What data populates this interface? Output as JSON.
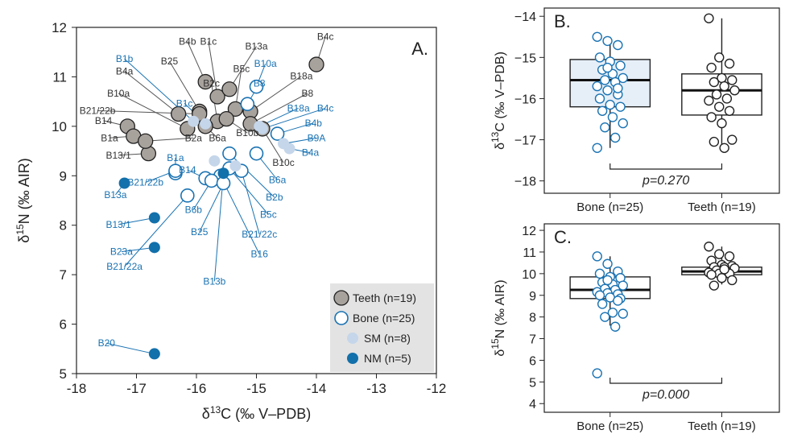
{
  "colors": {
    "teeth_fill": "#a8a29d",
    "bone_stroke": "#1a73b3",
    "sm_fill": "#c5d6ea",
    "nm_fill": "#1270aa",
    "box_b_fill": "#e6eef7",
    "leader_teeth": "#555555",
    "leader_bone": "#1a73b3",
    "legend_bg": "#e3e3e3"
  },
  "chart_data": [
    {
      "type": "scatter",
      "panel_label": "A.",
      "xlabel_main": "δ",
      "xlabel_sup": "13",
      "xlabel_rest": "C (‰ V–PDB)",
      "ylabel_main": "δ",
      "ylabel_sup": "15",
      "ylabel_rest": "N (‰ AIR)",
      "xlim": [
        -18,
        -12
      ],
      "ylim": [
        5,
        12
      ],
      "xticks": [
        -18,
        -17,
        -16,
        -15,
        -14,
        -13,
        -12
      ],
      "yticks": [
        5,
        6,
        7,
        8,
        9,
        10,
        11,
        12
      ],
      "xtick_labels": [
        "-18",
        "-17",
        "-16",
        "-15",
        "-14",
        "-13",
        "-12"
      ],
      "ytick_labels": [
        "5",
        "6",
        "7",
        "8",
        "9",
        "10",
        "11",
        "12"
      ],
      "legend": {
        "placement": "bottom-right",
        "items": [
          {
            "kind": "teeth",
            "label": "Teeth (n=19)"
          },
          {
            "kind": "bone",
            "label": "Bone  (n=25)"
          },
          {
            "kind": "sm",
            "label": "SM  (n=8)"
          },
          {
            "kind": "nm",
            "label": "NM (n=5)"
          }
        ]
      },
      "series": [
        {
          "name": "Teeth (n=19)",
          "kind": "teeth",
          "points": [
            {
              "label": "B4c",
              "x": -14.0,
              "y": 11.25,
              "lx": -13.85,
              "ly": 11.75
            },
            {
              "label": "B4b",
              "x": -15.85,
              "y": 10.9,
              "lx": -16.15,
              "ly": 11.65
            },
            {
              "label": "B1c",
              "x": -15.65,
              "y": 10.6,
              "lx": -15.8,
              "ly": 11.65
            },
            {
              "label": "B13a",
              "x": -15.45,
              "y": 10.75,
              "lx": -15.0,
              "ly": 11.55
            },
            {
              "label": "B5c",
              "x": -15.35,
              "y": 10.35,
              "lx": -15.25,
              "ly": 11.1
            },
            {
              "label": "B25",
              "x": -15.95,
              "y": 10.3,
              "lx": -16.45,
              "ly": 11.25
            },
            {
              "label": "B2c",
              "x": -15.65,
              "y": 10.1,
              "lx": -15.75,
              "ly": 10.8
            },
            {
              "label": "B4a",
              "x": -16.3,
              "y": 10.25,
              "lx": -17.2,
              "ly": 11.05
            },
            {
              "label": "B10a",
              "x": -16.15,
              "y": 9.95,
              "lx": -17.3,
              "ly": 10.6
            },
            {
              "label": "B21/22b",
              "x": -15.95,
              "y": 10.25,
              "lx": -17.65,
              "ly": 10.25
            },
            {
              "label": "B14",
              "x": -17.15,
              "y": 10.0,
              "lx": -17.55,
              "ly": 10.05
            },
            {
              "label": "B1a",
              "x": -17.05,
              "y": 9.8,
              "lx": -17.45,
              "ly": 9.7
            },
            {
              "label": "B13/1",
              "x": -16.8,
              "y": 9.45,
              "lx": -17.3,
              "ly": 9.35
            },
            {
              "label": "B2a",
              "x": -16.85,
              "y": 9.7,
              "lx": -16.05,
              "ly": 9.7
            },
            {
              "label": "B6a",
              "x": -15.85,
              "y": 10.0,
              "lx": -15.65,
              "ly": 9.7
            },
            {
              "label": "B10b",
              "x": -15.5,
              "y": 10.15,
              "lx": -15.15,
              "ly": 9.8
            },
            {
              "label": "B18a",
              "x": -15.1,
              "y": 10.3,
              "lx": -14.25,
              "ly": 10.95
            },
            {
              "label": "B8",
              "x": -15.1,
              "y": 10.05,
              "lx": -14.15,
              "ly": 10.6
            },
            {
              "label": "B10c",
              "x": -14.9,
              "y": 9.95,
              "lx": -14.55,
              "ly": 9.2
            }
          ]
        },
        {
          "name": "Bone  (n=25)",
          "kind": "bone",
          "points": [
            {
              "label": "B10a",
              "x": -15.0,
              "y": 10.8,
              "lx": -14.85,
              "ly": 11.2
            },
            {
              "label": "B8",
              "x": -15.15,
              "y": 10.45,
              "lx": -14.95,
              "ly": 10.8
            },
            {
              "label": "B4b",
              "x": -14.65,
              "y": 9.85,
              "lx": -14.05,
              "ly": 10.0
            },
            {
              "label": "B1a",
              "x": -16.35,
              "y": 9.05,
              "lx": -16.35,
              "ly": 9.3
            },
            {
              "label": "B14",
              "x": -15.85,
              "y": 8.95,
              "lx": -16.15,
              "ly": 9.05
            },
            {
              "label": "B21/22b",
              "x": -16.35,
              "y": 9.1,
              "lx": -16.85,
              "ly": 8.8
            },
            {
              "label": "B6a",
              "x": -15.0,
              "y": 9.45,
              "lx": -14.65,
              "ly": 8.85
            },
            {
              "label": "B2b",
              "x": -15.45,
              "y": 9.45,
              "lx": -14.7,
              "ly": 8.5
            },
            {
              "label": "B5c",
              "x": -15.45,
              "y": 9.15,
              "lx": -14.8,
              "ly": 8.15
            },
            {
              "label": "B21/22c",
              "x": -15.25,
              "y": 9.1,
              "lx": -14.95,
              "ly": 7.75
            },
            {
              "label": "B16",
              "x": -15.6,
              "y": 9.0,
              "lx": -14.95,
              "ly": 7.35
            },
            {
              "label": "B21/22a",
              "x": -16.15,
              "y": 8.6,
              "lx": -17.2,
              "ly": 7.1
            },
            {
              "label": "B6b",
              "x": -15.75,
              "y": 8.9,
              "lx": -16.05,
              "ly": 8.25
            },
            {
              "label": "B25",
              "x": -15.55,
              "y": 8.85,
              "lx": -15.95,
              "ly": 7.8
            }
          ]
        },
        {
          "name": "SM  (n=8)",
          "kind": "sm",
          "points": [
            {
              "label": "B1b",
              "x": -16.05,
              "y": 10.1,
              "lx": -17.2,
              "ly": 11.3
            },
            {
              "label": "B1c",
              "x": -15.85,
              "y": 10.05,
              "lx": -16.2,
              "ly": 10.4
            },
            {
              "label": "B18a",
              "x": -14.95,
              "y": 10.0,
              "lx": -14.3,
              "ly": 10.3
            },
            {
              "label": "B4c",
              "x": -14.9,
              "y": 9.95,
              "lx": -13.85,
              "ly": 10.3
            },
            {
              "label": "B9A",
              "x": -14.55,
              "y": 9.65,
              "lx": -14.0,
              "ly": 9.7
            },
            {
              "label": "B4a",
              "x": -14.45,
              "y": 9.55,
              "lx": -14.1,
              "ly": 9.4
            },
            {
              "label": "",
              "x": -15.7,
              "y": 9.3,
              "lx": null,
              "ly": null
            },
            {
              "label": "",
              "x": -15.35,
              "y": 9.2,
              "lx": null,
              "ly": null
            }
          ]
        },
        {
          "name": "NM (n=5)",
          "kind": "nm",
          "points": [
            {
              "label": "B13a",
              "x": -17.2,
              "y": 8.85,
              "lx": -17.35,
              "ly": 8.55
            },
            {
              "label": "B13/1",
              "x": -16.7,
              "y": 8.15,
              "lx": -17.3,
              "ly": 7.95
            },
            {
              "label": "B23a",
              "x": -16.7,
              "y": 7.55,
              "lx": -17.25,
              "ly": 7.4
            },
            {
              "label": "B13b",
              "x": -15.55,
              "y": 9.05,
              "lx": -15.7,
              "ly": 6.8
            },
            {
              "label": "B20",
              "x": -16.7,
              "y": 5.4,
              "lx": -17.5,
              "ly": 5.55
            }
          ]
        }
      ]
    },
    {
      "type": "box",
      "panel_label": "B.",
      "ylabel_main": "δ",
      "ylabel_sup": "13",
      "ylabel_rest": "C (‰ V–PDB)",
      "ylim": [
        -18.3,
        -13.8
      ],
      "yticks": [
        -18,
        -17,
        -16,
        -15,
        -14
      ],
      "ytick_labels": [
        "−18",
        "−17",
        "−16",
        "−15",
        "−14"
      ],
      "categories": [
        "Bone (n=25)",
        "Teeth (n=19)"
      ],
      "boxes": [
        {
          "q1": -16.2,
          "median": -15.55,
          "q3": -15.05,
          "whisker_low": -17.2,
          "whisker_high": -14.5
        },
        {
          "q1": -16.4,
          "median": -15.8,
          "q3": -15.4,
          "whisker_low": -17.2,
          "whisker_high": -14.05
        }
      ],
      "points": [
        [
          -14.5,
          -14.6,
          -14.7,
          -15.0,
          -15.1,
          -15.2,
          -15.3,
          -15.4,
          -15.5,
          -15.55,
          -15.6,
          -15.7,
          -15.8,
          -15.9,
          -16.0,
          -16.15,
          -16.2,
          -16.3,
          -16.45,
          -16.6,
          -16.7,
          -16.95,
          -17.2,
          -15.25,
          -15.75
        ],
        [
          -14.05,
          -15.0,
          -15.15,
          -15.25,
          -15.5,
          -15.55,
          -15.6,
          -15.7,
          -15.8,
          -15.9,
          -16.0,
          -16.05,
          -16.2,
          -16.3,
          -16.45,
          -16.6,
          -17.0,
          -17.05,
          -17.2
        ]
      ],
      "pvalue_text": "p=0.270"
    },
    {
      "type": "box",
      "panel_label": "C.",
      "ylabel_main": "δ",
      "ylabel_sup": "15",
      "ylabel_rest": "N (‰ AIR)",
      "ylim": [
        3.6,
        12.3
      ],
      "yticks": [
        4,
        5,
        6,
        7,
        8,
        9,
        10,
        11,
        12
      ],
      "ytick_labels": [
        "4",
        "5",
        "6",
        "7",
        "8",
        "9",
        "10",
        "11",
        "12"
      ],
      "categories": [
        "Bone (n=25)",
        "Teeth (n=19)"
      ],
      "boxes": [
        {
          "q1": 8.85,
          "median": 9.25,
          "q3": 9.85,
          "whisker_low": 7.6,
          "whisker_high": 10.8
        },
        {
          "q1": 9.95,
          "median": 10.1,
          "q3": 10.3,
          "whisker_low": 9.5,
          "whisker_high": 11.25
        }
      ],
      "points": [
        [
          10.8,
          10.45,
          10.1,
          10.0,
          9.85,
          9.8,
          9.6,
          9.5,
          9.45,
          9.3,
          9.25,
          9.15,
          9.1,
          9.05,
          9.0,
          8.9,
          8.85,
          8.6,
          8.2,
          8.15,
          8.0,
          7.55,
          5.4,
          9.7,
          8.75
        ],
        [
          11.25,
          10.9,
          10.8,
          10.6,
          10.4,
          10.35,
          10.3,
          10.3,
          10.25,
          10.15,
          10.1,
          10.05,
          10.0,
          10.0,
          9.95,
          9.8,
          9.7,
          9.45,
          10.2
        ]
      ],
      "pvalue_text": "p=0.000"
    }
  ]
}
